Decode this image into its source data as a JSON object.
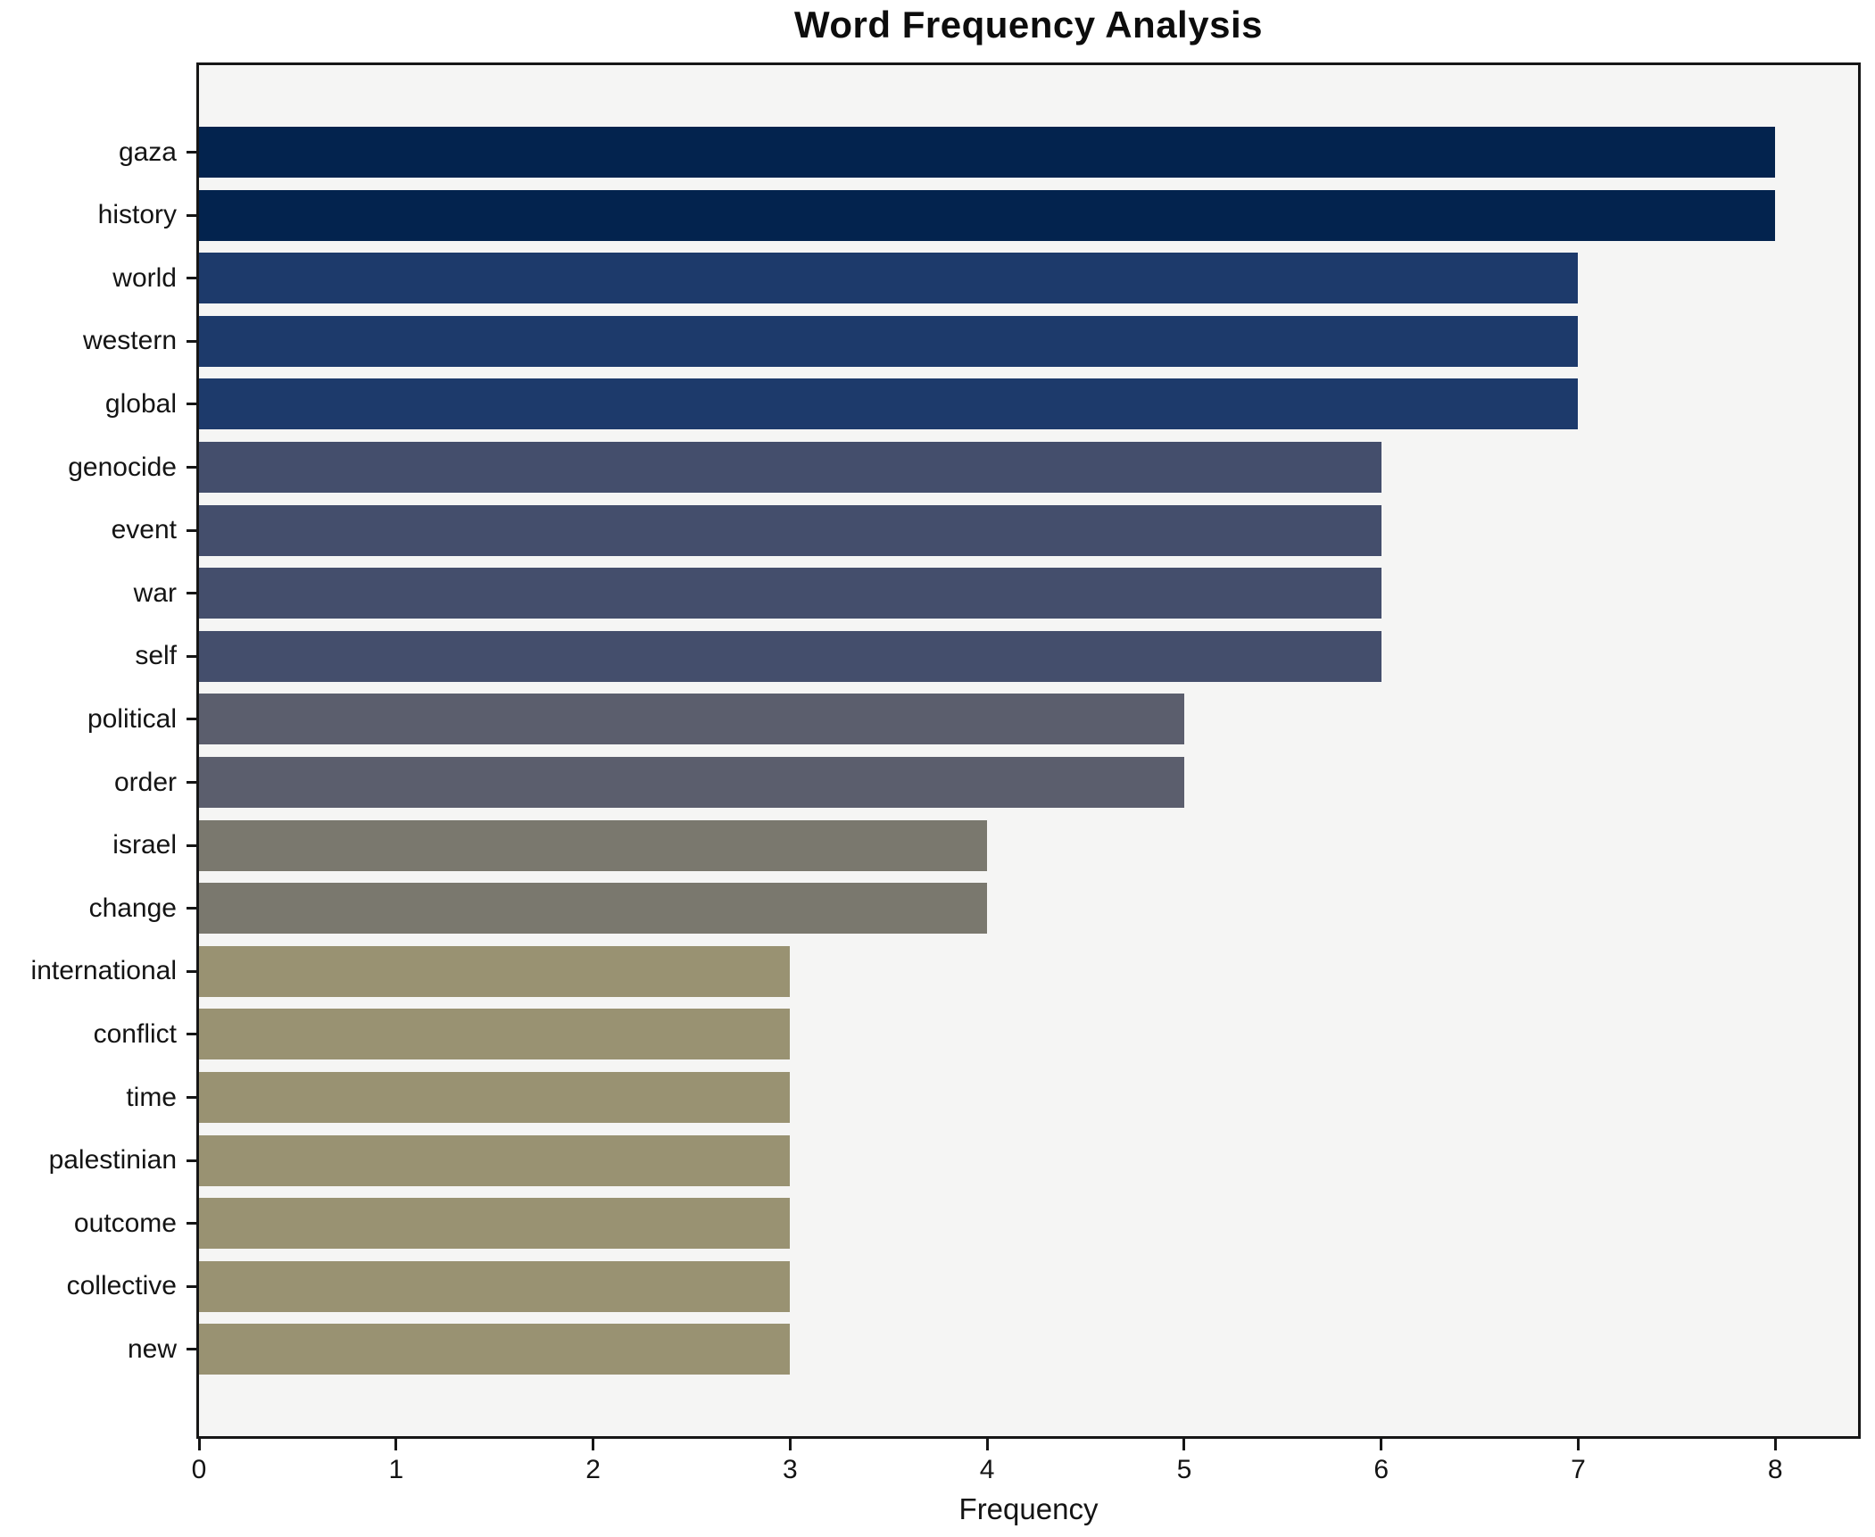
{
  "title": "Word Frequency Analysis",
  "chart_data": {
    "type": "bar",
    "orientation": "horizontal",
    "title": "Word Frequency Analysis",
    "xlabel": "Frequency",
    "ylabel": "",
    "categories": [
      "gaza",
      "history",
      "world",
      "western",
      "global",
      "genocide",
      "event",
      "war",
      "self",
      "political",
      "order",
      "israel",
      "change",
      "international",
      "conflict",
      "time",
      "palestinian",
      "outcome",
      "collective",
      "new"
    ],
    "values": [
      8,
      8,
      7,
      7,
      7,
      6,
      6,
      6,
      6,
      5,
      5,
      4,
      4,
      3,
      3,
      3,
      3,
      3,
      3,
      3
    ],
    "bar_colors": [
      "#03234e",
      "#03234e",
      "#1d3a6b",
      "#1d3a6b",
      "#1d3a6b",
      "#444e6c",
      "#444e6c",
      "#444e6c",
      "#444e6c",
      "#5b5e6d",
      "#5b5e6d",
      "#7a786e",
      "#7a786e",
      "#999272",
      "#999272",
      "#999272",
      "#999272",
      "#999272",
      "#999272",
      "#999272"
    ],
    "xlim": [
      0,
      8.42
    ],
    "xticks": [
      "0",
      "1",
      "2",
      "3",
      "4",
      "5",
      "6",
      "7",
      "8"
    ],
    "grid": false,
    "legend_position": "none",
    "plot_bg": "#f5f5f4",
    "fig_bg": "#ffffff",
    "spine_color": "#161616"
  }
}
